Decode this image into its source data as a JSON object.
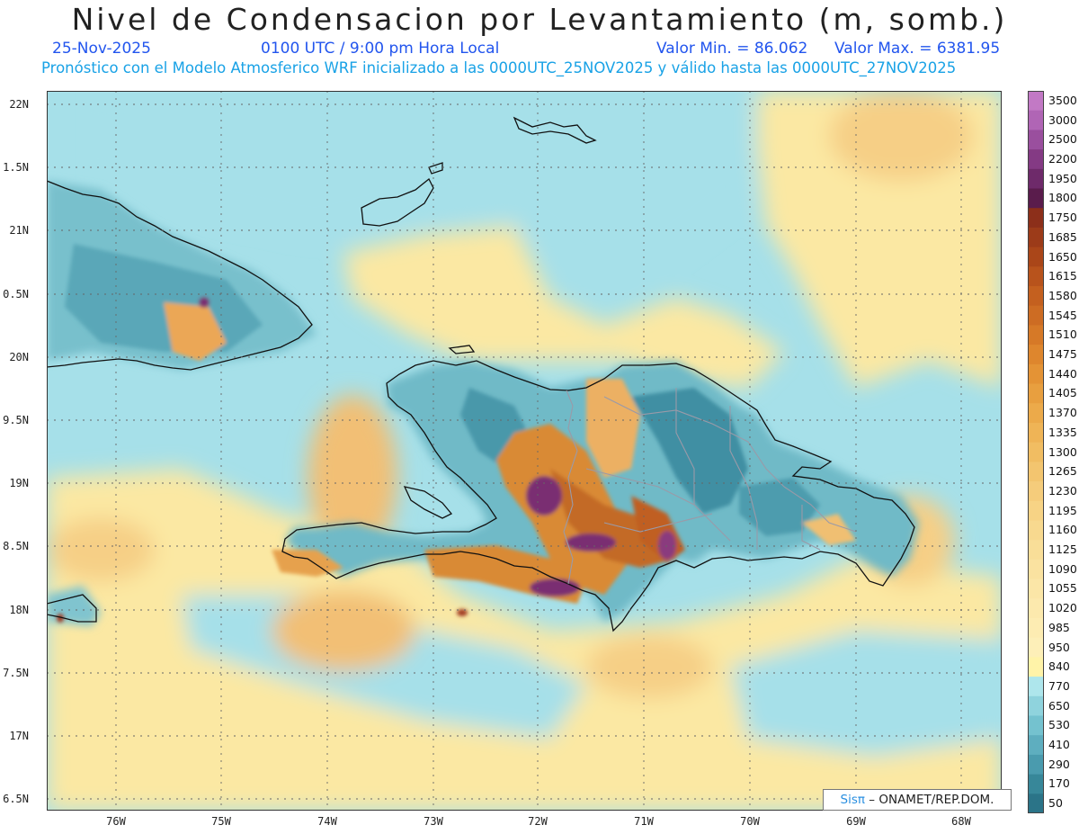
{
  "header": {
    "title": "Nivel de Condensacion por Levantamiento (m, somb.)",
    "date": "25-Nov-2025",
    "time": "0100 UTC / 9:00 pm Hora Local",
    "min_label": "Valor Min. = 86.062",
    "max_label": "Valor Max. = 6381.95",
    "forecast_info": "Pronóstico con el Modelo Atmosferico WRF inicializado a las 0000UTC_25NOV2025 y válido hasta las  0000UTC_27NOV2025"
  },
  "axes": {
    "lat_labels": [
      "22N",
      "1.5N",
      "21N",
      "0.5N",
      "20N",
      "9.5N",
      "19N",
      "8.5N",
      "18N",
      "7.5N",
      "17N",
      "6.5N"
    ],
    "lon_labels": [
      "76W",
      "75W",
      "74W",
      "73W",
      "72W",
      "71W",
      "70W",
      "69W",
      "68W"
    ]
  },
  "colorbar": {
    "levels": [
      "3500",
      "3000",
      "2500",
      "2200",
      "1950",
      "1800",
      "1750",
      "1685",
      "1650",
      "1615",
      "1580",
      "1545",
      "1510",
      "1475",
      "1440",
      "1405",
      "1370",
      "1335",
      "1300",
      "1265",
      "1230",
      "1195",
      "1160",
      "1125",
      "1090",
      "1055",
      "1020",
      "985",
      "950",
      "840",
      "770",
      "650",
      "530",
      "410",
      "290",
      "170",
      "50"
    ],
    "colors": [
      "#c279c5",
      "#b065b5",
      "#9a4f9e",
      "#843a84",
      "#6e2a6a",
      "#5a1c4c",
      "#8c2f1a",
      "#9c3b19",
      "#aa4619",
      "#b8531c",
      "#c4601f",
      "#cd6c23",
      "#d67927",
      "#de862d",
      "#e49335",
      "#e89f3f",
      "#ecaa4a",
      "#efb456",
      "#f1bd62",
      "#f3c56f",
      "#f5cc7b",
      "#f7d385",
      "#f8d98f",
      "#f9de98",
      "#fae2a0",
      "#fbe6a7",
      "#fce9ad",
      "#fdecb2",
      "#fdefb8",
      "#fff3a8",
      "#aee6ec",
      "#8fd3dd",
      "#74c2cf",
      "#5eaebf",
      "#4a9bae",
      "#378799",
      "#2b7488"
    ]
  },
  "credit": {
    "logo": "Sisπ",
    "text": "– ONAMET/REP.DOM."
  }
}
